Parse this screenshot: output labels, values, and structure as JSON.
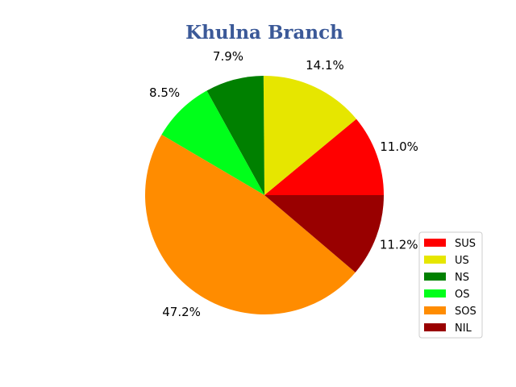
{
  "chart_data": {
    "type": "pie",
    "title": "Khulna Branch",
    "slices": [
      {
        "label": "SUS",
        "value": 11.0,
        "pct_label": "11.0%",
        "color": "#ff0000"
      },
      {
        "label": "US",
        "value": 14.1,
        "pct_label": "14.1%",
        "color": "#e6e600"
      },
      {
        "label": "NS",
        "value": 7.9,
        "pct_label": "7.9%",
        "color": "#008000"
      },
      {
        "label": "OS",
        "value": 8.5,
        "pct_label": "8.5%",
        "color": "#00ff1a"
      },
      {
        "label": "SOS",
        "value": 47.2,
        "pct_label": "47.2%",
        "color": "#ff8c00"
      },
      {
        "label": "NIL",
        "value": 11.2,
        "pct_label": "11.2%",
        "color": "#990000"
      }
    ],
    "start_angle_deg": 0,
    "direction": "counterclockwise",
    "legend_position": "lower-right"
  }
}
